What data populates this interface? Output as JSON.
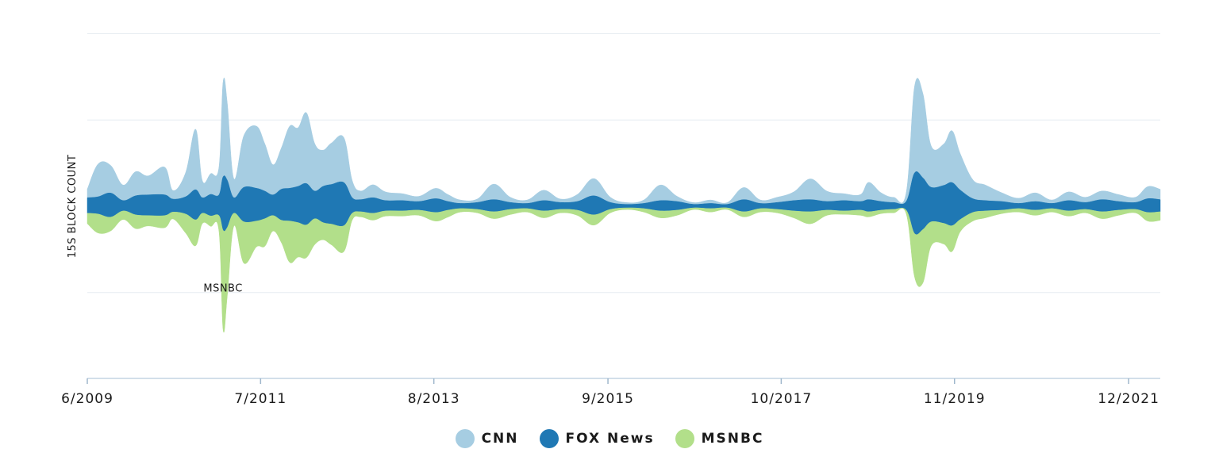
{
  "chart_data": {
    "type": "area",
    "layout": "streamgraph",
    "y_axis_label": "15S BLOCK COUNT",
    "x_tick_labels": [
      "6/2009",
      "7/2011",
      "8/2013",
      "9/2015",
      "10/2017",
      "11/2019",
      "12/2021"
    ],
    "x_range_years": [
      2009.42,
      2022.3
    ],
    "y_range": [
      -200,
      200
    ],
    "grid": true,
    "legend_position": "bottom-center",
    "annotation": {
      "text": "MSNBC",
      "x_year": 2011.05,
      "y_value": -95
    },
    "series": [
      {
        "name": "CNN",
        "color": "#a6cde2",
        "points": [
          [
            2009.42,
            10
          ],
          [
            2009.55,
            38
          ],
          [
            2009.7,
            32
          ],
          [
            2009.85,
            18
          ],
          [
            2010.0,
            28
          ],
          [
            2010.15,
            22
          ],
          [
            2010.35,
            32
          ],
          [
            2010.45,
            10
          ],
          [
            2010.6,
            28
          ],
          [
            2010.72,
            70
          ],
          [
            2010.8,
            20
          ],
          [
            2010.9,
            24
          ],
          [
            2011.0,
            32
          ],
          [
            2011.05,
            110
          ],
          [
            2011.1,
            90
          ],
          [
            2011.18,
            22
          ],
          [
            2011.3,
            60
          ],
          [
            2011.45,
            72
          ],
          [
            2011.55,
            55
          ],
          [
            2011.65,
            35
          ],
          [
            2011.75,
            48
          ],
          [
            2011.85,
            72
          ],
          [
            2011.95,
            68
          ],
          [
            2012.05,
            82
          ],
          [
            2012.15,
            55
          ],
          [
            2012.25,
            42
          ],
          [
            2012.35,
            48
          ],
          [
            2012.5,
            52
          ],
          [
            2012.6,
            20
          ],
          [
            2012.7,
            10
          ],
          [
            2012.85,
            15
          ],
          [
            2013.0,
            10
          ],
          [
            2013.2,
            8
          ],
          [
            2013.4,
            6
          ],
          [
            2013.6,
            12
          ],
          [
            2013.75,
            8
          ],
          [
            2013.9,
            4
          ],
          [
            2014.1,
            4
          ],
          [
            2014.3,
            18
          ],
          [
            2014.5,
            6
          ],
          [
            2014.7,
            4
          ],
          [
            2014.9,
            12
          ],
          [
            2015.1,
            4
          ],
          [
            2015.3,
            8
          ],
          [
            2015.5,
            20
          ],
          [
            2015.7,
            6
          ],
          [
            2015.9,
            2
          ],
          [
            2016.1,
            4
          ],
          [
            2016.3,
            18
          ],
          [
            2016.5,
            6
          ],
          [
            2016.7,
            2
          ],
          [
            2016.9,
            4
          ],
          [
            2017.1,
            2
          ],
          [
            2017.3,
            14
          ],
          [
            2017.5,
            4
          ],
          [
            2017.7,
            6
          ],
          [
            2017.9,
            10
          ],
          [
            2018.1,
            24
          ],
          [
            2018.3,
            12
          ],
          [
            2018.5,
            8
          ],
          [
            2018.7,
            8
          ],
          [
            2018.8,
            20
          ],
          [
            2018.95,
            10
          ],
          [
            2019.1,
            6
          ],
          [
            2019.25,
            10
          ],
          [
            2019.35,
            100
          ],
          [
            2019.45,
            98
          ],
          [
            2019.55,
            48
          ],
          [
            2019.7,
            48
          ],
          [
            2019.8,
            60
          ],
          [
            2019.9,
            42
          ],
          [
            2020.05,
            22
          ],
          [
            2020.2,
            18
          ],
          [
            2020.4,
            10
          ],
          [
            2020.6,
            6
          ],
          [
            2020.8,
            10
          ],
          [
            2021.0,
            4
          ],
          [
            2021.2,
            10
          ],
          [
            2021.4,
            6
          ],
          [
            2021.6,
            10
          ],
          [
            2021.8,
            8
          ],
          [
            2022.0,
            6
          ],
          [
            2022.15,
            14
          ],
          [
            2022.3,
            12
          ]
        ]
      },
      {
        "name": "FOX News",
        "color": "#1f78b4",
        "points": [
          [
            2009.42,
            18
          ],
          [
            2009.55,
            20
          ],
          [
            2009.7,
            28
          ],
          [
            2009.85,
            12
          ],
          [
            2010.0,
            22
          ],
          [
            2010.15,
            24
          ],
          [
            2010.35,
            24
          ],
          [
            2010.45,
            15
          ],
          [
            2010.6,
            20
          ],
          [
            2010.72,
            35
          ],
          [
            2010.8,
            18
          ],
          [
            2010.9,
            25
          ],
          [
            2011.0,
            24
          ],
          [
            2011.05,
            62
          ],
          [
            2011.1,
            55
          ],
          [
            2011.18,
            18
          ],
          [
            2011.3,
            40
          ],
          [
            2011.45,
            38
          ],
          [
            2011.55,
            32
          ],
          [
            2011.65,
            24
          ],
          [
            2011.75,
            36
          ],
          [
            2011.85,
            38
          ],
          [
            2011.95,
            42
          ],
          [
            2012.05,
            48
          ],
          [
            2012.15,
            32
          ],
          [
            2012.25,
            42
          ],
          [
            2012.35,
            46
          ],
          [
            2012.5,
            50
          ],
          [
            2012.6,
            18
          ],
          [
            2012.7,
            14
          ],
          [
            2012.85,
            18
          ],
          [
            2013.0,
            12
          ],
          [
            2013.2,
            12
          ],
          [
            2013.4,
            10
          ],
          [
            2013.6,
            16
          ],
          [
            2013.75,
            10
          ],
          [
            2013.9,
            6
          ],
          [
            2014.1,
            8
          ],
          [
            2014.3,
            14
          ],
          [
            2014.5,
            8
          ],
          [
            2014.7,
            6
          ],
          [
            2014.9,
            12
          ],
          [
            2015.1,
            8
          ],
          [
            2015.3,
            10
          ],
          [
            2015.5,
            22
          ],
          [
            2015.7,
            8
          ],
          [
            2015.9,
            4
          ],
          [
            2016.1,
            6
          ],
          [
            2016.3,
            12
          ],
          [
            2016.5,
            10
          ],
          [
            2016.7,
            4
          ],
          [
            2016.9,
            6
          ],
          [
            2017.1,
            4
          ],
          [
            2017.3,
            14
          ],
          [
            2017.5,
            6
          ],
          [
            2017.7,
            8
          ],
          [
            2017.9,
            12
          ],
          [
            2018.1,
            14
          ],
          [
            2018.3,
            10
          ],
          [
            2018.5,
            12
          ],
          [
            2018.7,
            10
          ],
          [
            2018.8,
            14
          ],
          [
            2018.95,
            10
          ],
          [
            2019.1,
            8
          ],
          [
            2019.25,
            10
          ],
          [
            2019.35,
            70
          ],
          [
            2019.45,
            60
          ],
          [
            2019.55,
            40
          ],
          [
            2019.7,
            44
          ],
          [
            2019.8,
            50
          ],
          [
            2019.9,
            34
          ],
          [
            2020.05,
            16
          ],
          [
            2020.2,
            12
          ],
          [
            2020.4,
            10
          ],
          [
            2020.6,
            6
          ],
          [
            2020.8,
            10
          ],
          [
            2021.0,
            6
          ],
          [
            2021.2,
            12
          ],
          [
            2021.4,
            8
          ],
          [
            2021.6,
            14
          ],
          [
            2021.8,
            10
          ],
          [
            2022.0,
            8
          ],
          [
            2022.15,
            16
          ],
          [
            2022.3,
            14
          ]
        ]
      },
      {
        "name": "MSNBC",
        "color": "#b2df8a",
        "points": [
          [
            2009.42,
            12
          ],
          [
            2009.55,
            22
          ],
          [
            2009.7,
            16
          ],
          [
            2009.85,
            10
          ],
          [
            2010.0,
            16
          ],
          [
            2010.15,
            12
          ],
          [
            2010.35,
            14
          ],
          [
            2010.45,
            8
          ],
          [
            2010.6,
            22
          ],
          [
            2010.72,
            30
          ],
          [
            2010.8,
            12
          ],
          [
            2010.9,
            12
          ],
          [
            2011.0,
            18
          ],
          [
            2011.05,
            115
          ],
          [
            2011.1,
            80
          ],
          [
            2011.18,
            15
          ],
          [
            2011.3,
            48
          ],
          [
            2011.45,
            30
          ],
          [
            2011.55,
            32
          ],
          [
            2011.65,
            18
          ],
          [
            2011.75,
            26
          ],
          [
            2011.85,
            48
          ],
          [
            2011.95,
            40
          ],
          [
            2012.05,
            38
          ],
          [
            2012.15,
            30
          ],
          [
            2012.25,
            20
          ],
          [
            2012.35,
            24
          ],
          [
            2012.5,
            30
          ],
          [
            2012.6,
            8
          ],
          [
            2012.7,
            6
          ],
          [
            2012.85,
            8
          ],
          [
            2013.0,
            6
          ],
          [
            2013.2,
            6
          ],
          [
            2013.4,
            6
          ],
          [
            2013.6,
            10
          ],
          [
            2013.75,
            8
          ],
          [
            2013.9,
            4
          ],
          [
            2014.1,
            4
          ],
          [
            2014.3,
            8
          ],
          [
            2014.5,
            6
          ],
          [
            2014.7,
            4
          ],
          [
            2014.9,
            8
          ],
          [
            2015.1,
            4
          ],
          [
            2015.3,
            6
          ],
          [
            2015.5,
            12
          ],
          [
            2015.7,
            4
          ],
          [
            2015.9,
            2
          ],
          [
            2016.1,
            4
          ],
          [
            2016.3,
            8
          ],
          [
            2016.5,
            6
          ],
          [
            2016.7,
            2
          ],
          [
            2016.9,
            4
          ],
          [
            2017.1,
            2
          ],
          [
            2017.3,
            6
          ],
          [
            2017.5,
            4
          ],
          [
            2017.7,
            4
          ],
          [
            2017.9,
            8
          ],
          [
            2018.1,
            14
          ],
          [
            2018.3,
            6
          ],
          [
            2018.5,
            4
          ],
          [
            2018.7,
            6
          ],
          [
            2018.8,
            6
          ],
          [
            2018.95,
            4
          ],
          [
            2019.1,
            4
          ],
          [
            2019.25,
            4
          ],
          [
            2019.35,
            50
          ],
          [
            2019.45,
            62
          ],
          [
            2019.55,
            28
          ],
          [
            2019.7,
            24
          ],
          [
            2019.8,
            30
          ],
          [
            2019.9,
            14
          ],
          [
            2020.05,
            10
          ],
          [
            2020.2,
            8
          ],
          [
            2020.4,
            4
          ],
          [
            2020.6,
            4
          ],
          [
            2020.8,
            6
          ],
          [
            2021.0,
            4
          ],
          [
            2021.2,
            6
          ],
          [
            2021.4,
            4
          ],
          [
            2021.6,
            8
          ],
          [
            2021.8,
            6
          ],
          [
            2022.0,
            4
          ],
          [
            2022.15,
            10
          ],
          [
            2022.3,
            10
          ]
        ]
      }
    ]
  },
  "legend": {
    "items": [
      {
        "label": "CNN",
        "color": "#a6cde2"
      },
      {
        "label": "FOX News",
        "color": "#1f78b4"
      },
      {
        "label": "MSNBC",
        "color": "#b2df8a"
      }
    ]
  }
}
